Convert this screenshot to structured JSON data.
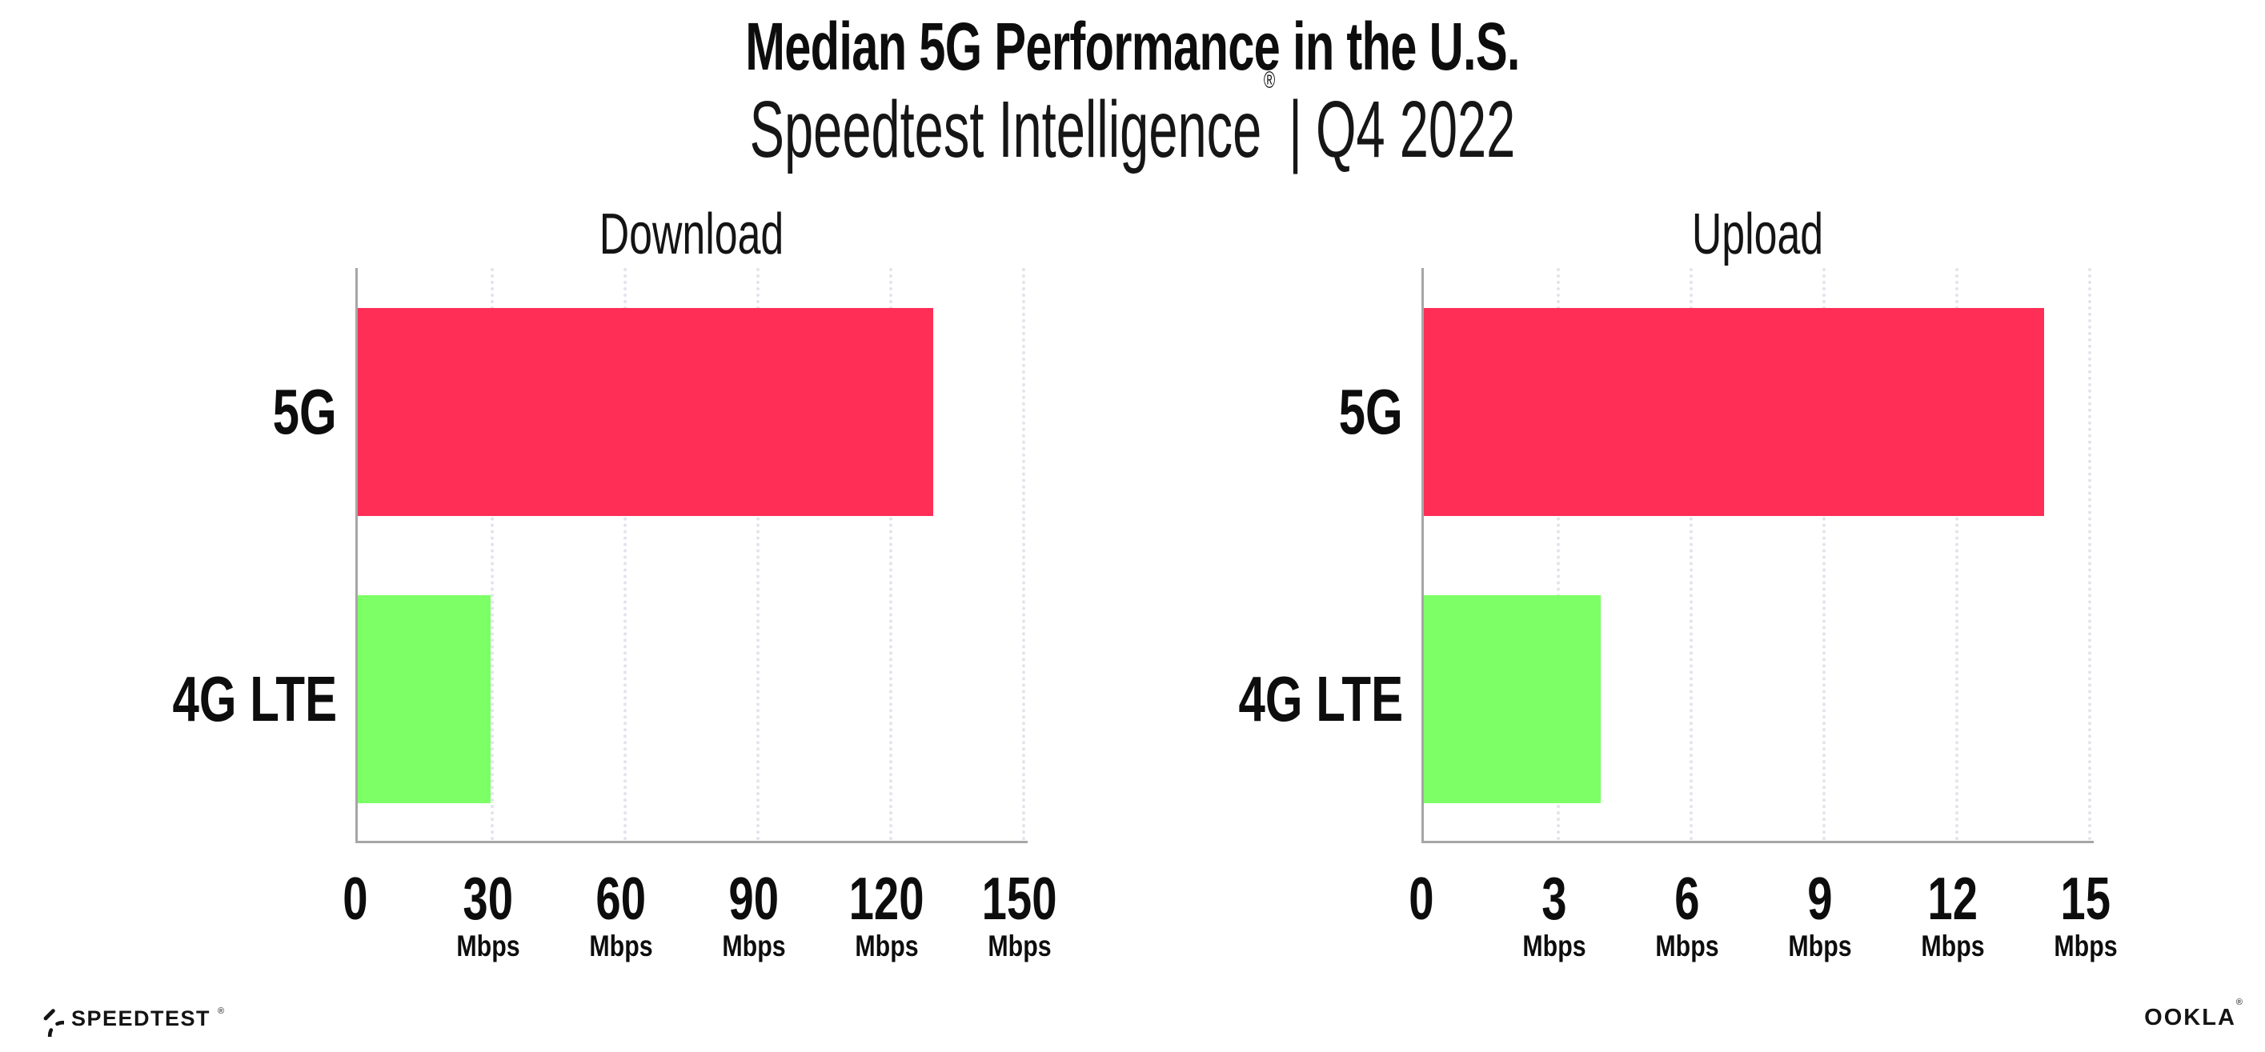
{
  "header": {
    "title": "Median 5G Performance in the U.S.",
    "subtitle_brand": "Speedtest Intelligence",
    "subtitle_registered": "®",
    "subtitle_separator": "|",
    "subtitle_period": "Q4 2022"
  },
  "chart_data": [
    {
      "type": "bar",
      "orientation": "horizontal",
      "title": "Download",
      "categories": [
        "5G",
        "4G LTE"
      ],
      "values": [
        130,
        30
      ],
      "unit": "Mbps",
      "xlim": [
        0,
        150
      ],
      "xticks": [
        0,
        30,
        60,
        90,
        120,
        150
      ],
      "grid": "vertical-dotted",
      "legend": "none",
      "bar_colors": [
        "#ff2e56",
        "#7dff66"
      ]
    },
    {
      "type": "bar",
      "orientation": "horizontal",
      "title": "Upload",
      "categories": [
        "5G",
        "4G LTE"
      ],
      "values": [
        14,
        4
      ],
      "unit": "Mbps",
      "xlim": [
        0,
        15
      ],
      "xticks": [
        0,
        3,
        6,
        9,
        12,
        15
      ],
      "grid": "vertical-dotted",
      "legend": "none",
      "bar_colors": [
        "#ff2e56",
        "#7dff66"
      ]
    }
  ],
  "colors": {
    "bar_5g": "#ff2e56",
    "bar_4g_lte": "#7dff66",
    "gridline": "#e2e3ed",
    "axis": "#a6a6a6",
    "text": "#0d0d0d"
  },
  "footer": {
    "speedtest_label": "SPEEDTEST",
    "speedtest_mark": "®",
    "ookla_label": "OOKLA",
    "ookla_mark": "®"
  }
}
